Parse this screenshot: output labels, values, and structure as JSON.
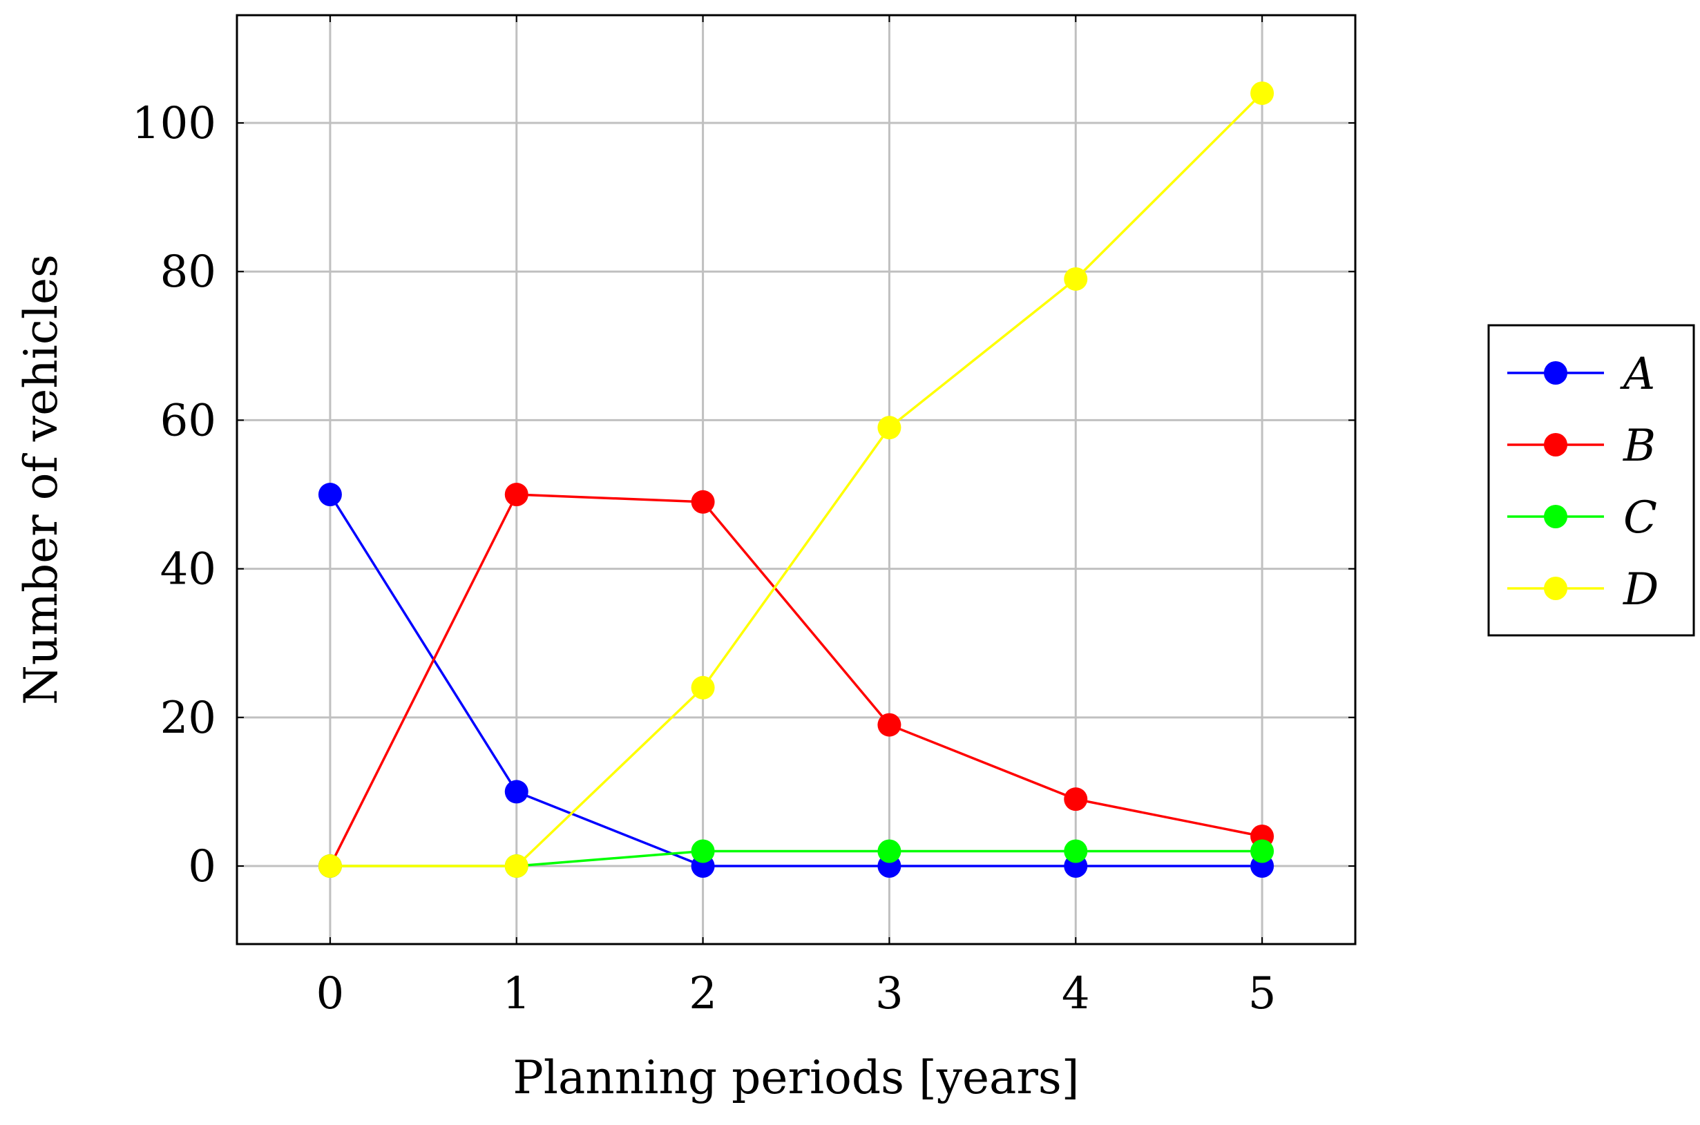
{
  "chart_data": {
    "type": "line",
    "title": "",
    "xlabel": "Planning periods [years]",
    "ylabel": "Number of vehicles",
    "x": [
      0,
      1,
      2,
      3,
      4,
      5
    ],
    "xlim": [
      -0.5,
      5.5
    ],
    "ylim": [
      -10.5,
      114.5
    ],
    "xticks": [
      0,
      1,
      2,
      3,
      4,
      5
    ],
    "yticks": [
      0,
      20,
      40,
      60,
      80,
      100
    ],
    "xtick_labels": [
      "0",
      "1",
      "2",
      "3",
      "4",
      "5"
    ],
    "ytick_labels": [
      "0",
      "20",
      "40",
      "60",
      "80",
      "100"
    ],
    "grid": true,
    "legend_position": "right-outside",
    "series": [
      {
        "name": "A",
        "color": "#0000ff",
        "values": [
          50,
          10,
          0,
          0,
          0,
          0
        ]
      },
      {
        "name": "B",
        "color": "#ff0000",
        "values": [
          0,
          50,
          49,
          19,
          9,
          4
        ]
      },
      {
        "name": "C",
        "color": "#00ff00",
        "values": [
          0,
          0,
          2,
          2,
          2,
          2
        ]
      },
      {
        "name": "D",
        "color": "#ffff00",
        "values": [
          0,
          0,
          24,
          59,
          79,
          104
        ]
      }
    ]
  }
}
